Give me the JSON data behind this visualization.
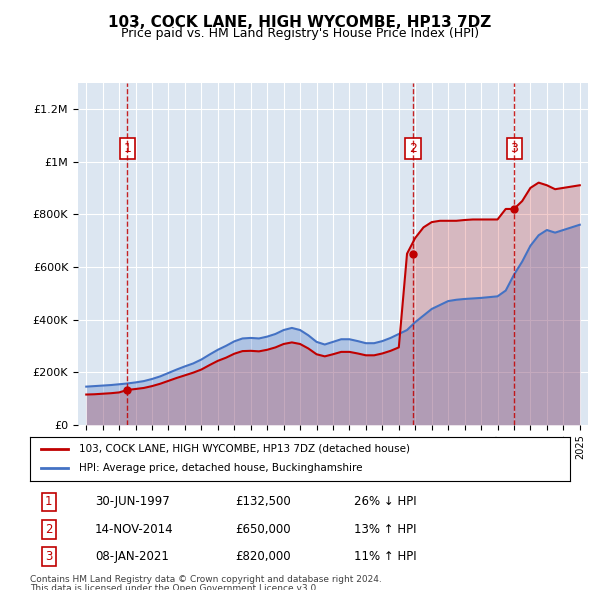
{
  "title": "103, COCK LANE, HIGH WYCOMBE, HP13 7DZ",
  "subtitle": "Price paid vs. HM Land Registry's House Price Index (HPI)",
  "legend_red": "103, COCK LANE, HIGH WYCOMBE, HP13 7DZ (detached house)",
  "legend_blue": "HPI: Average price, detached house, Buckinghamshire",
  "transactions": [
    {
      "num": 1,
      "date": "30-JUN-1997",
      "price": 132500,
      "change": "26% ↓ HPI"
    },
    {
      "num": 2,
      "date": "14-NOV-2014",
      "price": 650000,
      "change": "13% ↑ HPI"
    },
    {
      "num": 3,
      "date": "08-JAN-2021",
      "price": 820000,
      "change": "11% ↑ HPI"
    }
  ],
  "sale_years": [
    1997.5,
    2014.87,
    2021.02
  ],
  "sale_prices": [
    132500,
    650000,
    820000
  ],
  "footnote1": "Contains HM Land Registry data © Crown copyright and database right 2024.",
  "footnote2": "This data is licensed under the Open Government Licence v3.0.",
  "bg_color": "#dce6f1",
  "plot_bg": "#dce6f1",
  "red_color": "#c00000",
  "blue_color": "#4472c4",
  "grid_color": "#ffffff",
  "ylim": [
    0,
    1300000
  ],
  "xlim": [
    1994.5,
    2025.5
  ],
  "hpi_years": [
    1995,
    1995.5,
    1996,
    1996.5,
    1997,
    1997.5,
    1998,
    1998.5,
    1999,
    1999.5,
    2000,
    2000.5,
    2001,
    2001.5,
    2002,
    2002.5,
    2003,
    2003.5,
    2004,
    2004.5,
    2005,
    2005.5,
    2006,
    2006.5,
    2007,
    2007.5,
    2008,
    2008.5,
    2009,
    2009.5,
    2010,
    2010.5,
    2011,
    2011.5,
    2012,
    2012.5,
    2013,
    2013.5,
    2014,
    2014.5,
    2015,
    2015.5,
    2016,
    2016.5,
    2017,
    2017.5,
    2018,
    2018.5,
    2019,
    2019.5,
    2020,
    2020.5,
    2021,
    2021.5,
    2022,
    2022.5,
    2023,
    2023.5,
    2024,
    2024.5,
    2025
  ],
  "hpi_values": [
    145000,
    147000,
    149000,
    151000,
    154000,
    157000,
    161000,
    166000,
    174000,
    184000,
    197000,
    210000,
    222000,
    233000,
    248000,
    267000,
    285000,
    300000,
    317000,
    328000,
    330000,
    328000,
    335000,
    345000,
    360000,
    368000,
    360000,
    340000,
    315000,
    305000,
    315000,
    325000,
    325000,
    318000,
    310000,
    310000,
    318000,
    330000,
    345000,
    360000,
    390000,
    415000,
    440000,
    455000,
    470000,
    475000,
    478000,
    480000,
    482000,
    485000,
    488000,
    510000,
    570000,
    620000,
    680000,
    720000,
    740000,
    730000,
    740000,
    750000,
    760000
  ],
  "red_years": [
    1995,
    1995.5,
    1996,
    1996.5,
    1997,
    1997.5,
    1998,
    1998.5,
    1999,
    1999.5,
    2000,
    2000.5,
    2001,
    2001.5,
    2002,
    2002.5,
    2003,
    2003.5,
    2004,
    2004.5,
    2005,
    2005.5,
    2006,
    2006.5,
    2007,
    2007.5,
    2008,
    2008.5,
    2009,
    2009.5,
    2010,
    2010.5,
    2011,
    2011.5,
    2012,
    2012.5,
    2013,
    2013.5,
    2014,
    2014.5,
    2015,
    2015.5,
    2016,
    2016.5,
    2017,
    2017.5,
    2018,
    2018.5,
    2019,
    2019.5,
    2020,
    2020.5,
    2021,
    2021.5,
    2022,
    2022.5,
    2023,
    2023.5,
    2024,
    2024.5,
    2025
  ],
  "red_values": [
    115000,
    116000,
    118000,
    120000,
    123000,
    132500,
    136000,
    140000,
    147000,
    156000,
    167000,
    178000,
    188000,
    198000,
    210000,
    227000,
    243000,
    255000,
    270000,
    280000,
    281000,
    279000,
    285000,
    294000,
    307000,
    313000,
    307000,
    290000,
    268000,
    260000,
    268000,
    277000,
    277000,
    271000,
    264000,
    264000,
    271000,
    281000,
    294000,
    650000,
    710000,
    750000,
    770000,
    775000,
    775000,
    775000,
    778000,
    780000,
    780000,
    780000,
    780000,
    820000,
    820000,
    850000,
    900000,
    920000,
    910000,
    895000,
    900000,
    905000,
    910000
  ]
}
